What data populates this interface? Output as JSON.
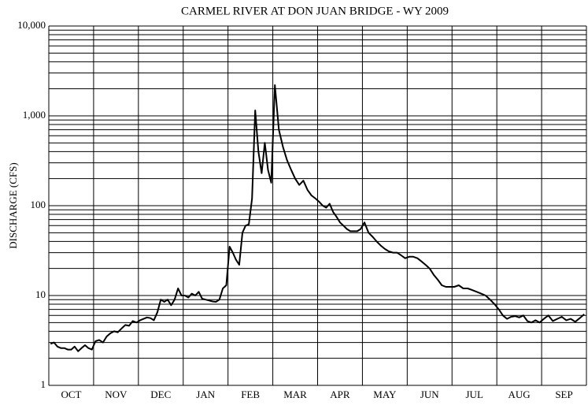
{
  "chart_data": {
    "type": "line",
    "title": "CARMEL RIVER AT DON JUAN BRIDGE - WY 2009",
    "y_label": "DISCHARGE (CFS)",
    "categories": [
      "OCT",
      "NOV",
      "DEC",
      "JAN",
      "FEB",
      "MAR",
      "APR",
      "MAY",
      "JUN",
      "JUL",
      "AUG",
      "SEP"
    ],
    "series": [
      {
        "color": "#000000",
        "values": [
          [
            2.9,
            3.0,
            2.7,
            2.6,
            2.6,
            2.5,
            2.5,
            2.7,
            2.4,
            2.6,
            2.8,
            2.6,
            2.5
          ],
          [
            3.1,
            3.2,
            3.0,
            3.5,
            3.8,
            4.0,
            3.9,
            4.3,
            4.7,
            4.6,
            5.2,
            5.0
          ],
          [
            5.3,
            5.5,
            5.7,
            5.6,
            5.3,
            6.5,
            9.0,
            8.5,
            9.0,
            7.8,
            9.0,
            12,
            10
          ],
          [
            10,
            9.5,
            10.5,
            10,
            11,
            9.2,
            9,
            8.8,
            8.6,
            8.5,
            9,
            12,
            13
          ],
          [
            35,
            30,
            25,
            22,
            50,
            60,
            62,
            120,
            1150,
            400,
            230,
            500,
            250,
            180
          ],
          [
            2200,
            700,
            450,
            320,
            250,
            200,
            170,
            190,
            150,
            130,
            120
          ],
          [
            110,
            100,
            95,
            105,
            85,
            75,
            65,
            60,
            55,
            52,
            52,
            52,
            55
          ],
          [
            65,
            50,
            45,
            40,
            36,
            33,
            31,
            30,
            30,
            28,
            26
          ],
          [
            27,
            27,
            26,
            24,
            22,
            20,
            17,
            15,
            13,
            12.5,
            12.5
          ],
          [
            12.5,
            13,
            12,
            12,
            11.5,
            11,
            10.5,
            10,
            9,
            8
          ],
          [
            7,
            6,
            5.5,
            5.8,
            5.9,
            5.7,
            6,
            5.2,
            5.0,
            5.3,
            5
          ],
          [
            5.5,
            6,
            5.2,
            5.5,
            5.8,
            5.3,
            5.5,
            5.1,
            5.6,
            6.2
          ]
        ]
      }
    ],
    "log_y": true,
    "ylim": [
      1,
      10000
    ],
    "yticks": [
      1,
      10,
      100,
      {
        "value": 1000,
        "label": "1,000"
      },
      {
        "value": 10000,
        "label": "10,000"
      }
    ],
    "yminor_ticks": [
      2,
      3,
      4,
      5,
      6,
      7,
      8,
      9,
      20,
      30,
      40,
      50,
      60,
      70,
      80,
      90,
      200,
      300,
      400,
      500,
      600,
      700,
      800,
      900,
      2000,
      3000,
      4000,
      5000,
      6000,
      7000,
      8000,
      9000
    ],
    "grid": true
  }
}
